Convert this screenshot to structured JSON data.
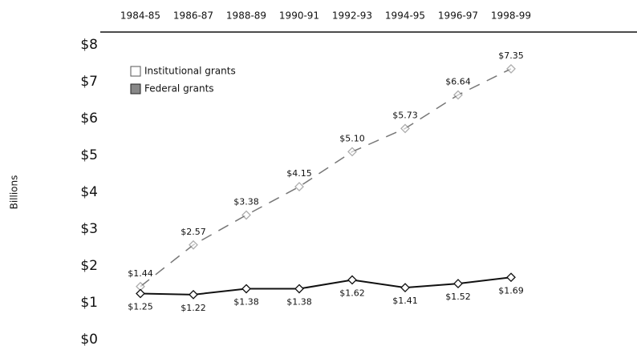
{
  "chart_data": {
    "type": "line",
    "y_axis_label": "Billions",
    "categories": [
      "1984-85",
      "1986-87",
      "1988-89",
      "1990-91",
      "1992-93",
      "1994-95",
      "1996-97",
      "1998-99"
    ],
    "series": [
      {
        "name": "Institutional grants",
        "color": "#777777",
        "values": [
          1.44,
          2.57,
          3.38,
          4.15,
          5.1,
          5.73,
          6.64,
          7.35
        ],
        "value_labels": [
          "$1.44",
          "$2.57",
          "$3.38",
          "$4.15",
          "$5.10",
          "$5.73",
          "$6.64",
          "$7.35"
        ]
      },
      {
        "name": "Federal grants",
        "color": "#111111",
        "values": [
          1.25,
          1.22,
          1.38,
          1.38,
          1.62,
          1.41,
          1.52,
          1.69
        ],
        "value_labels": [
          "$1.25",
          "$1.22",
          "$1.38",
          "$1.38",
          "$1.62",
          "$1.41",
          "$1.52",
          "$1.69"
        ]
      }
    ],
    "ylim": [
      0,
      8
    ],
    "yticks": [
      {
        "value": 0,
        "label": "$0"
      },
      {
        "value": 1,
        "label": "$1"
      },
      {
        "value": 2,
        "label": "$2"
      },
      {
        "value": 3,
        "label": "$3"
      },
      {
        "value": 4,
        "label": "$4"
      },
      {
        "value": 5,
        "label": "$5"
      },
      {
        "value": 6,
        "label": "$6"
      },
      {
        "value": 7,
        "label": "$7"
      },
      {
        "value": 8,
        "label": "$8"
      }
    ]
  }
}
